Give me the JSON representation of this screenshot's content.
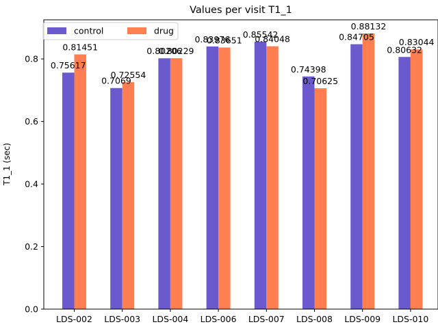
{
  "chart_data": {
    "type": "bar",
    "title": "Values per visit T1_1",
    "xlabel": "",
    "ylabel": "T1_1 (sec)",
    "categories": [
      "LDS-002",
      "LDS-003",
      "LDS-004",
      "LDS-006",
      "LDS-007",
      "LDS-008",
      "LDS-009",
      "LDS-010"
    ],
    "series": [
      {
        "name": "control",
        "color": "#6a5acd",
        "values": [
          0.75617,
          0.7069,
          0.80206,
          0.83976,
          0.85542,
          0.74398,
          0.84705,
          0.80632
        ],
        "labels": [
          "0.75617",
          "0.7069",
          "0.80206",
          "0.83976",
          "0.85542",
          "0.74398",
          "0.84705",
          "0.80632"
        ]
      },
      {
        "name": "drug",
        "color": "#ff7f50",
        "values": [
          0.81451,
          0.72554,
          0.80229,
          0.83651,
          0.84048,
          0.70625,
          0.88132,
          0.83044
        ],
        "labels": [
          "0.81451",
          "0.72554",
          "0.80229",
          "0.83651",
          "0.84048",
          "0.70625",
          "0.88132",
          "0.83044"
        ]
      }
    ],
    "ylim": [
      0,
      0.925
    ],
    "yticks": [
      0.0,
      0.2,
      0.4,
      0.6,
      0.8
    ],
    "ytick_labels": [
      "0.0",
      "0.2",
      "0.4",
      "0.6",
      "0.8"
    ],
    "grid": false,
    "legend_position": "top-left"
  }
}
